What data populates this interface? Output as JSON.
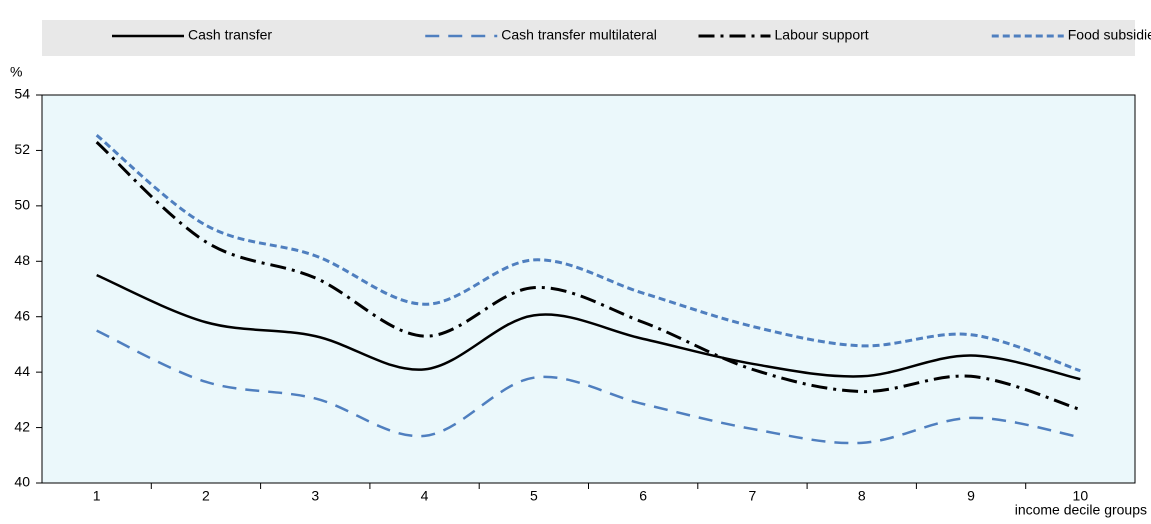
{
  "chart_data": {
    "type": "line",
    "y_unit_label": "%",
    "x_axis_label": "income decile groups",
    "categories": [
      "1",
      "2",
      "3",
      "4",
      "5",
      "6",
      "7",
      "8",
      "9",
      "10"
    ],
    "series": [
      {
        "name": "Cash transfer",
        "color": "#000000",
        "dash": "solid",
        "values": [
          47.5,
          45.8,
          45.3,
          44.1,
          46.05,
          45.2,
          44.3,
          43.85,
          44.6,
          43.75
        ]
      },
      {
        "name": "Cash transfer multilateral",
        "color": "#4f7fbf",
        "dash": "long",
        "values": [
          45.5,
          43.65,
          43.05,
          41.7,
          43.8,
          42.85,
          41.95,
          41.45,
          42.35,
          41.65
        ]
      },
      {
        "name": "Labour support",
        "color": "#000000",
        "dash": "dashdot",
        "values": [
          52.3,
          48.7,
          47.4,
          45.3,
          47.05,
          45.8,
          44.1,
          43.3,
          43.85,
          42.65
        ]
      },
      {
        "name": "Food subsidies",
        "color": "#4f7fbf",
        "dash": "short",
        "values": [
          52.55,
          49.3,
          48.2,
          46.45,
          48.05,
          46.85,
          45.65,
          44.95,
          45.35,
          44.05
        ]
      }
    ],
    "ylim": [
      40,
      54
    ],
    "yticks": [
      40,
      42,
      44,
      46,
      48,
      50,
      52,
      54
    ],
    "legend_position": "top",
    "grid": false
  }
}
